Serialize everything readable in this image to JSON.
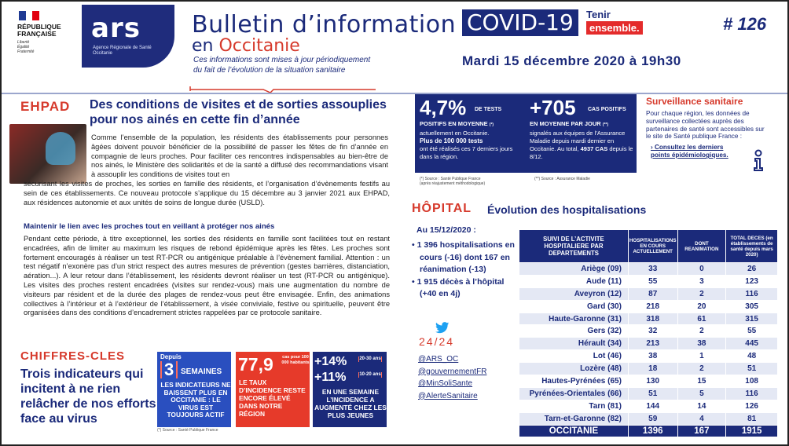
{
  "header": {
    "rf": {
      "line1": "RÉPUBLIQUE",
      "line2": "FRANÇAISE",
      "motto1": "Liberté",
      "motto2": "Égalité",
      "motto3": "Fraternité"
    },
    "ars": {
      "word": "ars",
      "sub": "Agence Régionale de Santé Occitanie"
    },
    "title": "Bulletin d’information",
    "covid": "COVID-19",
    "tenir1": "Tenir",
    "tenir2": "ensemble.",
    "issue": "# 126",
    "en": "en ",
    "region": "Occitanie",
    "bubble_line1": "Ces informations sont mises à jour périodiquement",
    "bubble_line2": "du fait de l’évolution de la situation sanitaire",
    "date": "Mardi 15 décembre 2020 à 19h30"
  },
  "ehpad": {
    "label": "EHPAD",
    "title": "Des conditions de visites et de sorties assouplies pour nos ainés en cette fin d’année",
    "p1a": "Comme l’ensemble de la population, les résidents des établissements pour personnes âgées doivent pouvoir bénéficier de la possibilité de passer les fêtes de fin d’année en compagnie de leurs proches. Pour faciliter ces rencontres indispensables au bien-être de nos ainés, le Ministère des solidarités et de la santé a diffusé des recommandations visant à assouplir les conditions de visites tout en",
    "p1b": "sécurisant les visites de proches, les sorties en famille des résidents, et l’organisation d’évènements festifs au sein de ces établissements. Ce nouveau protocole s’applique du 15 décembre au 3 janvier 2021 aux EHPAD, aux résidences autonomie et aux unités de soins de longue durée (USLD).",
    "subtitle": "Maintenir le lien avec les proches tout en veillant à protéger nos ainés",
    "p2": "Pendant cette période, à titre exceptionnel, les sorties des résidents en famille sont facilitées tout en restant encadrées,  afin de limiter au maximum les risques de rebond épidémique après les fêtes. Les proches sont fortement encouragés à réaliser un test RT-PCR ou antigénique préalable à l’évènement familial. Attention : un test négatif n’exonère pas d’un strict respect des autres mesures de prévention (gestes barrières, distanciation, aération...). A leur retour dans l’établissement, les résidents devront réaliser un test (RT-PCR ou antigénique). Les visites des proches restent encadrées (visites sur rendez-vous) mais une augmentation du nombre de visiteurs par résident et de la durée des plages de rendez-vous peut être envisagée. Enfin, des animations collectives à l’intérieur et à l’extérieur de l’établissement, à visée conviviale, festive ou spirituelle, peuvent être organisées dans des conditions d’encadrement strictes rappelées par ce protocole sanitaire."
  },
  "chiffres": {
    "label": "CHIFFRES-CLES",
    "title": "Trois indicateurs qui incitent à ne rien relâcher de nos efforts face au virus",
    "box1": {
      "top": "Depuis",
      "num": "3",
      "unit": "SEMAINES",
      "text": "LES INDICATEURS NE BAISSENT PLUS EN OCCITANIE : LE VIRUS EST TOUJOURS ACTIF"
    },
    "box2": {
      "num": "77,9",
      "unit": "cas pour 100 000 habitants",
      "text": "LE TAUX D’INCIDENCE RESTE ENCORE ÉLEVÉ DANS NOTRE RÉGION"
    },
    "box3": {
      "num1": "+14%",
      "age1": "20-30 ans",
      "num2": "+11%",
      "age2": "10-20 ans",
      "text": "EN UNE SEMAINE L’INCIDENCE A AUGMENTÉ CHEZ LES PLUS JEUNES"
    },
    "source": "(*) Source : Santé Publique France"
  },
  "stats": {
    "s1_num": "4,7%",
    "s1_unit": "DE TESTS",
    "s1_sub": "POSITIFS EN MOYENNE",
    "s1_sup": "(*)",
    "s1_text1": "actuellement en Occitanie.",
    "s1_bold": "Plus de 100 000 tests",
    "s1_text2": "ont été réalisés ces 7 derniers jours dans la région.",
    "s2_num": "+705",
    "s2_unit": "CAS POSITIFS",
    "s2_sub": "EN MOYENNE PAR JOUR",
    "s2_sup": "(**)",
    "s2_text": "signalés aux équipes de l’Assurance Maladie depuis mardi dernier en Occitanie. Au total,",
    "s2_bold": "4937 CAS",
    "s2_text2": "depuis le 8/12.",
    "src1": "(*) Source : Santé Publique France",
    "src1b": "(après réajustement méthodologique)",
    "src2": "(**) Source : Assurance Maladie"
  },
  "surveillance": {
    "title": "Surveillance sanitaire",
    "text": "Pour chaque région, les données de surveillance collectées auprès des partenaires de santé sont accessibles sur le site de Santé publique France :",
    "link": "Consultez les derniers points épidémiologiques."
  },
  "hopital": {
    "label": "HÔPITAL",
    "title": "Évolution des hospitalisations",
    "date": "Au 15/12/2020 :",
    "b1": "1 396 hospitalisations en cours (-16) dont 167 en réanimation (-13)",
    "b2": "1 915 décès à l’hôpital (+40 en 4j)"
  },
  "social": {
    "tag": "24/24",
    "links": [
      "@ARS_OC",
      "@gouvernementFR",
      "@MinSoliSante",
      "@AlerteSanitaire"
    ]
  },
  "table": {
    "headers": [
      "SUIVI DE L’ACTIVITE HOSPITALIERE PAR DEPARTEMENTS",
      "HOSPITALISATIONS EN COURS ACTUELLEMENT",
      "DONT REANIMATION",
      "TOTAL DECES (en établissements de santé depuis mars 2020)"
    ],
    "rows": [
      [
        "Ariège (09)",
        "33",
        "0",
        "26"
      ],
      [
        "Aude (11)",
        "55",
        "3",
        "123"
      ],
      [
        "Aveyron (12)",
        "87",
        "2",
        "116"
      ],
      [
        "Gard (30)",
        "218",
        "20",
        "305"
      ],
      [
        "Haute-Garonne (31)",
        "318",
        "61",
        "315"
      ],
      [
        "Gers (32)",
        "32",
        "2",
        "55"
      ],
      [
        "Hérault (34)",
        "213",
        "38",
        "445"
      ],
      [
        "Lot (46)",
        "38",
        "1",
        "48"
      ],
      [
        "Lozère (48)",
        "18",
        "2",
        "51"
      ],
      [
        "Hautes-Pyrénées (65)",
        "130",
        "15",
        "108"
      ],
      [
        "Pyrénées-Orientales (66)",
        "51",
        "5",
        "116"
      ],
      [
        "Tarn (81)",
        "144",
        "14",
        "126"
      ],
      [
        "Tarn-et-Garonne (82)",
        "59",
        "4",
        "81"
      ]
    ],
    "total": [
      "OCCITANIE",
      "1396",
      "167",
      "1915"
    ]
  },
  "colors": {
    "navy": "#1b2a7a",
    "red": "#d63a2c",
    "blue": "#2a4fbf"
  }
}
